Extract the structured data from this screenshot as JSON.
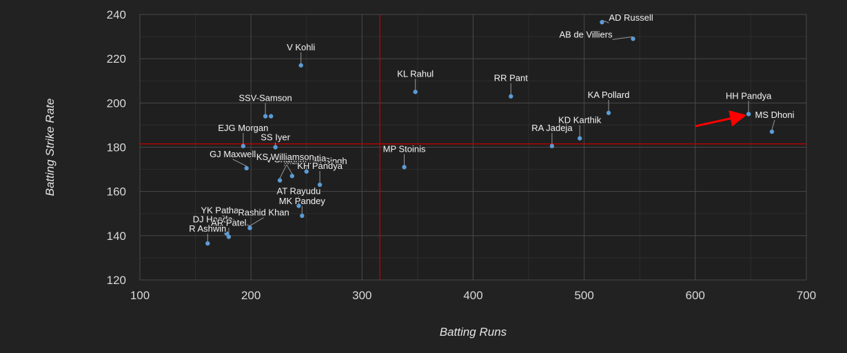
{
  "chart_data": {
    "type": "scatter",
    "xlabel": "Batting Runs",
    "ylabel": "Batting Strike Rate",
    "xlim": [
      100,
      700
    ],
    "ylim": [
      120,
      240
    ],
    "xticks": [
      100,
      200,
      300,
      400,
      500,
      600,
      700
    ],
    "yticks": [
      120,
      140,
      160,
      180,
      200,
      220,
      240
    ],
    "grid": true,
    "reference_lines": {
      "x": 316,
      "y": 181.5
    },
    "colors": {
      "background": "#222222",
      "plot_area": "#1f1f1f",
      "grid_major": "#4a4a4a",
      "grid_minor": "#2e2e2e",
      "point": "#5b9bd5",
      "reference_line": "#c00000",
      "arrow": "#ff0000"
    },
    "points": [
      {
        "label": "AD Russell",
        "x": 516,
        "y": 236.5,
        "lx": 10,
        "ly": -2,
        "anchor": "start"
      },
      {
        "label": "AB de Villiers",
        "x": 544,
        "y": 229,
        "lx": -30,
        "ly": -2,
        "anchor": "end"
      },
      {
        "label": "V Kohli",
        "x": 245,
        "y": 217,
        "lx": 0,
        "ly": -22,
        "anchor": "middle"
      },
      {
        "label": "KL Rahul",
        "x": 348,
        "y": 205,
        "lx": 0,
        "ly": -22,
        "anchor": "middle"
      },
      {
        "label": "RR Pant",
        "x": 434,
        "y": 203,
        "lx": 0,
        "ly": -22,
        "anchor": "middle"
      },
      {
        "label": "KA Pollard",
        "x": 522,
        "y": 195.5,
        "lx": 0,
        "ly": -22,
        "anchor": "middle"
      },
      {
        "label": "HH Pandya",
        "x": 648,
        "y": 195,
        "lx": 0,
        "ly": -22,
        "anchor": "middle"
      },
      {
        "label": "MS Dhoni",
        "x": 669,
        "y": 187,
        "lx": 4,
        "ly": -20,
        "anchor": "middle"
      },
      {
        "label": "SSV-Samson",
        "x": 213,
        "y": 194,
        "lx": 0,
        "ly": -22,
        "anchor": "middle"
      },
      {
        "label": "",
        "x": 218,
        "y": 194,
        "lx": 0,
        "ly": 0,
        "anchor": "middle"
      },
      {
        "label": "KD Karthik",
        "x": 496,
        "y": 184,
        "lx": 0,
        "ly": -22,
        "anchor": "middle"
      },
      {
        "label": "RA Jadeja",
        "x": 471,
        "y": 180.5,
        "lx": 0,
        "ly": -22,
        "anchor": "middle"
      },
      {
        "label": "EJG Morgan",
        "x": 193,
        "y": 180.5,
        "lx": 0,
        "ly": -22,
        "anchor": "middle"
      },
      {
        "label": "SS Iyer",
        "x": 222,
        "y": 180,
        "lx": 0,
        "ly": -10,
        "anchor": "middle"
      },
      {
        "label": "Mandeep Singh",
        "x": 230,
        "y": 174,
        "lx": 0,
        "ly": 5,
        "anchor": "start"
      },
      {
        "label": "GJ Maxwell",
        "x": 196,
        "y": 170.5,
        "lx": -20,
        "ly": -16,
        "anchor": "middle"
      },
      {
        "label": "MP Stoinis",
        "x": 338,
        "y": 171,
        "lx": 0,
        "ly": -22,
        "anchor": "middle"
      },
      {
        "label": "R Tewatia",
        "x": 250,
        "y": 169,
        "lx": 0,
        "ly": -15,
        "anchor": "middle"
      },
      {
        "label": "V Shankar",
        "x": 226,
        "y": 165,
        "lx": 10,
        "ly": -26,
        "anchor": "middle"
      },
      {
        "label": "KS Williamson",
        "x": 237,
        "y": 167,
        "lx": -10,
        "ly": -23,
        "anchor": "middle"
      },
      {
        "label": "KH Pandya",
        "x": 262,
        "y": 163,
        "lx": 0,
        "ly": -23,
        "anchor": "middle"
      },
      {
        "label": "AT Rayudu",
        "x": 243,
        "y": 153.5,
        "lx": 0,
        "ly": -17,
        "anchor": "middle"
      },
      {
        "label": "MK Pandey",
        "x": 246,
        "y": 149,
        "lx": 0,
        "ly": -17,
        "anchor": "middle"
      },
      {
        "label": "YK Pathan",
        "x": 199,
        "y": 143.5,
        "lx": -40,
        "ly": -21,
        "anchor": "middle"
      },
      {
        "label": "Rashid Khan",
        "x": 199,
        "y": 143.5,
        "lx": 20,
        "ly": -18,
        "anchor": "middle"
      },
      {
        "label": "DJ Hooda",
        "x": 178,
        "y": 141,
        "lx": -20,
        "ly": -16,
        "anchor": "middle"
      },
      {
        "label": "AR Patel",
        "x": 180,
        "y": 139.5,
        "lx": 0,
        "ly": -16,
        "anchor": "middle"
      },
      {
        "label": "R Ashwin",
        "x": 161,
        "y": 136.5,
        "lx": 0,
        "ly": -17,
        "anchor": "middle"
      }
    ],
    "annotation_arrow": {
      "from": [
        600,
        189.5
      ],
      "to": [
        645,
        194.5
      ]
    }
  }
}
